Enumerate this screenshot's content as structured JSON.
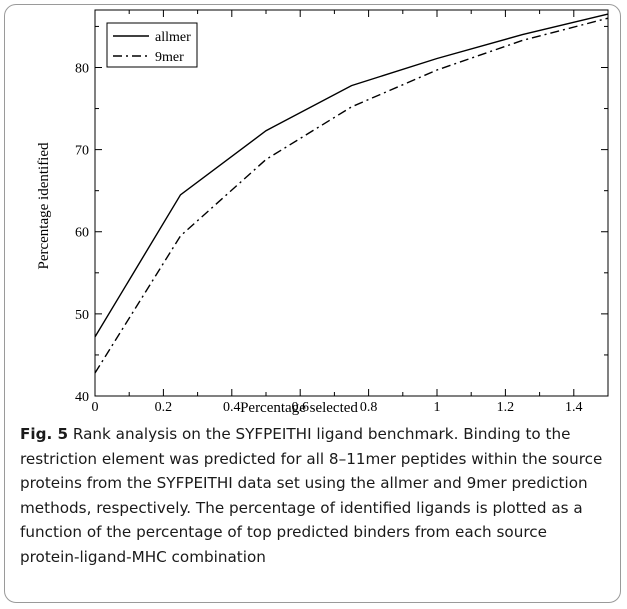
{
  "chart_data": {
    "type": "line",
    "xlabel": "Percentage selected",
    "ylabel": "Percentage identified",
    "xlim": [
      0,
      1.5
    ],
    "ylim": [
      40,
      87
    ],
    "xticks": [
      0,
      0.2,
      0.4,
      0.6,
      0.8,
      1,
      1.2,
      1.4
    ],
    "xtick_labels": [
      "0",
      "0.2",
      "0.4",
      "0.6",
      "0.8",
      "1",
      "1.2",
      "1.4"
    ],
    "yticks": [
      40,
      50,
      60,
      70,
      80
    ],
    "ytick_labels": [
      "40",
      "50",
      "60",
      "70",
      "80"
    ],
    "grid": false,
    "legend_position": "top-left",
    "series": [
      {
        "name": "allmer",
        "style": "solid",
        "x": [
          0,
          0.25,
          0.5,
          0.75,
          1.0,
          1.25,
          1.5
        ],
        "y": [
          47.2,
          64.5,
          72.3,
          77.8,
          81.1,
          84.0,
          86.5
        ]
      },
      {
        "name": "9mer",
        "style": "dashdot",
        "x": [
          0,
          0.25,
          0.5,
          0.75,
          1.0,
          1.25,
          1.5
        ],
        "y": [
          42.8,
          59.5,
          68.8,
          75.2,
          79.7,
          83.3,
          86.0
        ]
      }
    ]
  },
  "caption": {
    "label": "Fig. 5",
    "text": " Rank analysis on the SYFPEITHI ligand benchmark. Binding to the restriction element was predicted for all 8–11mer peptides within the source proteins from the SYFPEITHI data set using the allmer and 9mer prediction methods, respectively. The percentage of identified ligands is plotted as a function of the percentage of top predicted binders from each source protein-ligand-MHC combination"
  }
}
